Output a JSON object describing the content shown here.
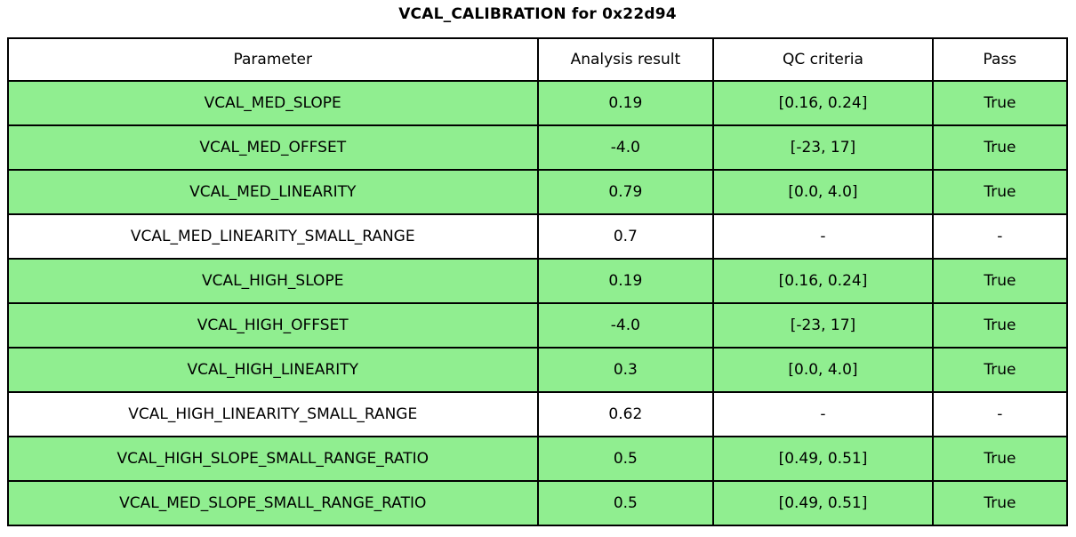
{
  "title": "VCAL_CALIBRATION for 0x22d94",
  "colors": {
    "pass_green": "#90EE90",
    "row_plain": "#ffffff",
    "border": "#000000",
    "text": "#000000"
  },
  "chart_data": {
    "type": "table",
    "title": "VCAL_CALIBRATION for 0x22d94",
    "columns": [
      "Parameter",
      "Analysis result",
      "QC criteria",
      "Pass"
    ],
    "rows": [
      {
        "parameter": "VCAL_MED_SLOPE",
        "result": "0.19",
        "criteria": "[0.16, 0.24]",
        "pass": "True",
        "highlight": true
      },
      {
        "parameter": "VCAL_MED_OFFSET",
        "result": "-4.0",
        "criteria": "[-23, 17]",
        "pass": "True",
        "highlight": true
      },
      {
        "parameter": "VCAL_MED_LINEARITY",
        "result": "0.79",
        "criteria": "[0.0, 4.0]",
        "pass": "True",
        "highlight": true
      },
      {
        "parameter": "VCAL_MED_LINEARITY_SMALL_RANGE",
        "result": "0.7",
        "criteria": "-",
        "pass": "-",
        "highlight": false
      },
      {
        "parameter": "VCAL_HIGH_SLOPE",
        "result": "0.19",
        "criteria": "[0.16, 0.24]",
        "pass": "True",
        "highlight": true
      },
      {
        "parameter": "VCAL_HIGH_OFFSET",
        "result": "-4.0",
        "criteria": "[-23, 17]",
        "pass": "True",
        "highlight": true
      },
      {
        "parameter": "VCAL_HIGH_LINEARITY",
        "result": "0.3",
        "criteria": "[0.0, 4.0]",
        "pass": "True",
        "highlight": true
      },
      {
        "parameter": "VCAL_HIGH_LINEARITY_SMALL_RANGE",
        "result": "0.62",
        "criteria": "-",
        "pass": "-",
        "highlight": false
      },
      {
        "parameter": "VCAL_HIGH_SLOPE_SMALL_RANGE_RATIO",
        "result": "0.5",
        "criteria": "[0.49, 0.51]",
        "pass": "True",
        "highlight": true
      },
      {
        "parameter": "VCAL_MED_SLOPE_SMALL_RANGE_RATIO",
        "result": "0.5",
        "criteria": "[0.49, 0.51]",
        "pass": "True",
        "highlight": true
      }
    ]
  }
}
